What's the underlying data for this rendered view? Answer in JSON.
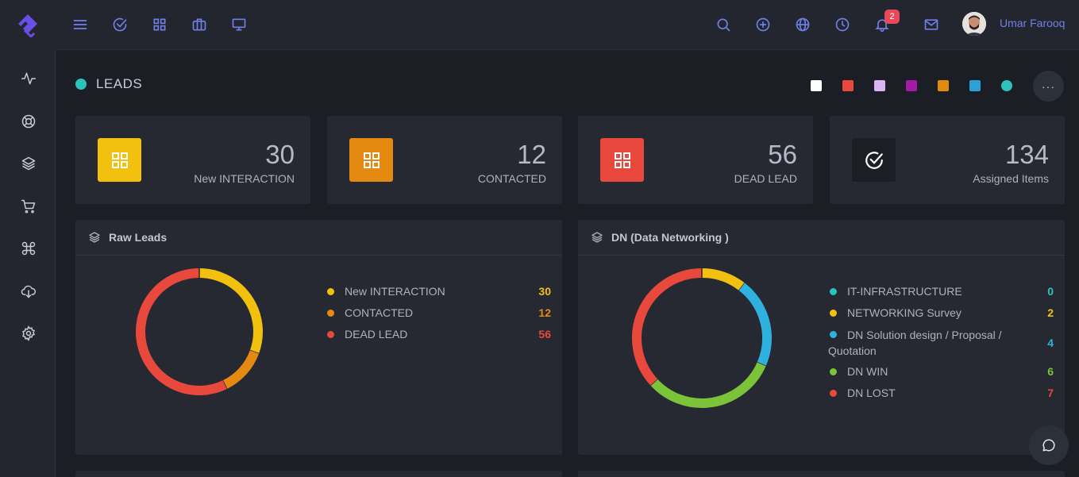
{
  "header": {
    "username": "Umar Farooq",
    "notification_count": "2"
  },
  "page": {
    "title": "LEADS",
    "theme_swatches": [
      "#ffffff",
      "#e8493c",
      "#d9b3f2",
      "#a31aa8",
      "#e48a10",
      "#2d9fd9",
      "#2bc4bd"
    ]
  },
  "stats": [
    {
      "value": "30",
      "label": "New INTERACTION",
      "color": "#f2c10f",
      "icon": "grid-icon"
    },
    {
      "value": "12",
      "label": "CONTACTED",
      "color": "#e48a10",
      "icon": "grid-icon"
    },
    {
      "value": "56",
      "label": "DEAD LEAD",
      "color": "#e8493c",
      "icon": "grid-icon"
    },
    {
      "value": "134",
      "label": "Assigned Items",
      "color": "#1b1e25",
      "icon": "check-circle-icon"
    }
  ],
  "raw_leads": {
    "title": "Raw Leads",
    "items": [
      {
        "label": "New INTERACTION",
        "value": "30",
        "color": "#f2c10f"
      },
      {
        "label": "CONTACTED",
        "value": "12",
        "color": "#e48a10"
      },
      {
        "label": "DEAD LEAD",
        "value": "56",
        "color": "#e8493c"
      }
    ]
  },
  "dn": {
    "title": "DN (Data Networking )",
    "items": [
      {
        "label": "IT-INFRASTRUCTURE",
        "value": "0",
        "color": "#2bc4bd"
      },
      {
        "label": "NETWORKING Survey",
        "value": "2",
        "color": "#f2c10f"
      },
      {
        "label": "DN Solution design / Proposal / Quotation",
        "value": "4",
        "color": "#2fb1e0"
      },
      {
        "label": "DN WIN",
        "value": "6",
        "color": "#7bc43a"
      },
      {
        "label": "DN LOST",
        "value": "7",
        "color": "#e8493c"
      }
    ]
  }
}
